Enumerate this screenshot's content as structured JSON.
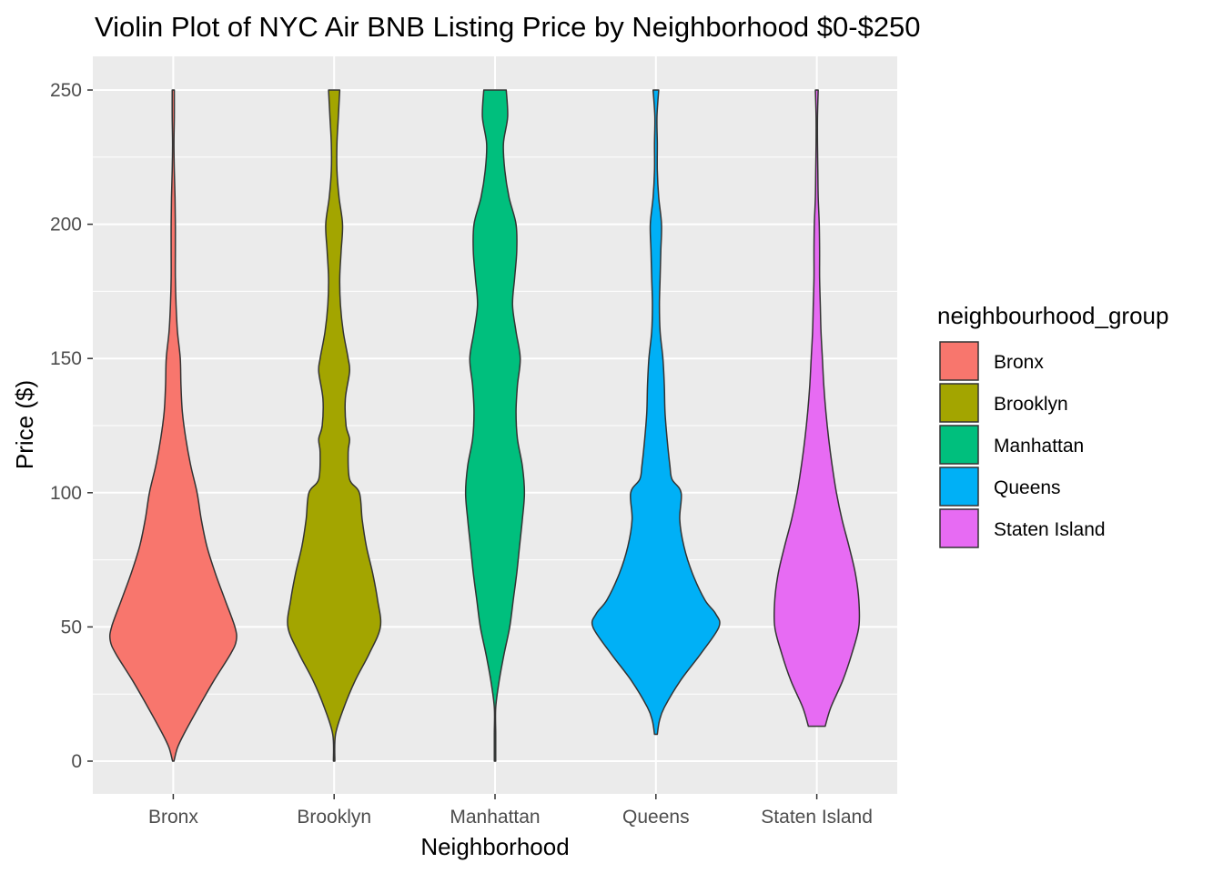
{
  "chart_data": {
    "type": "violin",
    "title": "Violin Plot of NYC Air BNB Listing Price by Neighborhood $0-$250",
    "xlabel": "Neighborhood",
    "ylabel": "Price ($)",
    "ylim": [
      -12,
      262
    ],
    "yticks": [
      0,
      50,
      100,
      150,
      200,
      250
    ],
    "grid": true,
    "legend_position": "right",
    "legend_title": "neighbourhood_group",
    "categories": [
      "Bronx",
      "Brooklyn",
      "Manhattan",
      "Queens",
      "Staten Island"
    ],
    "colors": [
      "#F8766D",
      "#A3A500",
      "#00BF7D",
      "#00B0F6",
      "#E76BF3"
    ],
    "outline_color": "#333333",
    "panel_color": "#EBEBEB",
    "series": [
      {
        "name": "Bronx",
        "min": 0,
        "max": 250,
        "density": [
          [
            0,
            0.01
          ],
          [
            5,
            0.06
          ],
          [
            10,
            0.15
          ],
          [
            20,
            0.36
          ],
          [
            30,
            0.58
          ],
          [
            40,
            0.82
          ],
          [
            45,
            0.9
          ],
          [
            50,
            0.88
          ],
          [
            60,
            0.74
          ],
          [
            70,
            0.6
          ],
          [
            80,
            0.48
          ],
          [
            90,
            0.4
          ],
          [
            100,
            0.34
          ],
          [
            110,
            0.25
          ],
          [
            120,
            0.18
          ],
          [
            130,
            0.13
          ],
          [
            140,
            0.11
          ],
          [
            150,
            0.1
          ],
          [
            160,
            0.06
          ],
          [
            170,
            0.04
          ],
          [
            180,
            0.03
          ],
          [
            190,
            0.03
          ],
          [
            200,
            0.03
          ],
          [
            210,
            0.025
          ],
          [
            220,
            0.015
          ],
          [
            230,
            0.01
          ],
          [
            240,
            0.015
          ],
          [
            250,
            0.015
          ]
        ]
      },
      {
        "name": "Brooklyn",
        "min": 0,
        "max": 250,
        "density": [
          [
            0,
            0.01
          ],
          [
            10,
            0.02
          ],
          [
            20,
            0.14
          ],
          [
            30,
            0.3
          ],
          [
            40,
            0.5
          ],
          [
            50,
            0.66
          ],
          [
            60,
            0.62
          ],
          [
            70,
            0.55
          ],
          [
            80,
            0.46
          ],
          [
            90,
            0.4
          ],
          [
            100,
            0.36
          ],
          [
            105,
            0.22
          ],
          [
            115,
            0.2
          ],
          [
            120,
            0.22
          ],
          [
            125,
            0.17
          ],
          [
            135,
            0.16
          ],
          [
            145,
            0.22
          ],
          [
            150,
            0.2
          ],
          [
            160,
            0.13
          ],
          [
            170,
            0.09
          ],
          [
            180,
            0.08
          ],
          [
            190,
            0.1
          ],
          [
            200,
            0.12
          ],
          [
            210,
            0.07
          ],
          [
            220,
            0.04
          ],
          [
            230,
            0.04
          ],
          [
            240,
            0.06
          ],
          [
            250,
            0.08
          ]
        ]
      },
      {
        "name": "Manhattan",
        "min": 0,
        "max": 250,
        "density": [
          [
            0,
            0.01
          ],
          [
            10,
            0.01
          ],
          [
            20,
            0.01
          ],
          [
            30,
            0.06
          ],
          [
            40,
            0.13
          ],
          [
            50,
            0.21
          ],
          [
            60,
            0.26
          ],
          [
            70,
            0.31
          ],
          [
            80,
            0.35
          ],
          [
            90,
            0.39
          ],
          [
            100,
            0.42
          ],
          [
            110,
            0.39
          ],
          [
            120,
            0.32
          ],
          [
            130,
            0.3
          ],
          [
            140,
            0.32
          ],
          [
            150,
            0.36
          ],
          [
            160,
            0.3
          ],
          [
            170,
            0.25
          ],
          [
            180,
            0.28
          ],
          [
            190,
            0.31
          ],
          [
            200,
            0.3
          ],
          [
            210,
            0.2
          ],
          [
            220,
            0.14
          ],
          [
            230,
            0.12
          ],
          [
            240,
            0.18
          ],
          [
            250,
            0.16
          ]
        ]
      },
      {
        "name": "Queens",
        "min": 10,
        "max": 250,
        "density": [
          [
            10,
            0.02
          ],
          [
            15,
            0.05
          ],
          [
            20,
            0.12
          ],
          [
            30,
            0.35
          ],
          [
            40,
            0.64
          ],
          [
            50,
            0.9
          ],
          [
            55,
            0.85
          ],
          [
            60,
            0.7
          ],
          [
            70,
            0.52
          ],
          [
            80,
            0.4
          ],
          [
            90,
            0.34
          ],
          [
            100,
            0.36
          ],
          [
            105,
            0.23
          ],
          [
            110,
            0.2
          ],
          [
            120,
            0.16
          ],
          [
            130,
            0.13
          ],
          [
            140,
            0.12
          ],
          [
            150,
            0.1
          ],
          [
            160,
            0.06
          ],
          [
            170,
            0.05
          ],
          [
            180,
            0.06
          ],
          [
            190,
            0.07
          ],
          [
            200,
            0.08
          ],
          [
            210,
            0.04
          ],
          [
            220,
            0.02
          ],
          [
            230,
            0.02
          ],
          [
            240,
            0.015
          ],
          [
            250,
            0.04
          ]
        ]
      },
      {
        "name": "Staten Island",
        "min": 13,
        "max": 250,
        "density": [
          [
            13,
            0.12
          ],
          [
            20,
            0.2
          ],
          [
            30,
            0.37
          ],
          [
            40,
            0.5
          ],
          [
            50,
            0.6
          ],
          [
            60,
            0.6
          ],
          [
            70,
            0.55
          ],
          [
            80,
            0.46
          ],
          [
            90,
            0.36
          ],
          [
            100,
            0.28
          ],
          [
            110,
            0.22
          ],
          [
            120,
            0.17
          ],
          [
            130,
            0.13
          ],
          [
            140,
            0.1
          ],
          [
            150,
            0.08
          ],
          [
            160,
            0.06
          ],
          [
            170,
            0.05
          ],
          [
            180,
            0.04
          ],
          [
            190,
            0.04
          ],
          [
            200,
            0.035
          ],
          [
            210,
            0.02
          ],
          [
            220,
            0.015
          ],
          [
            230,
            0.01
          ],
          [
            240,
            0.01
          ],
          [
            250,
            0.02
          ]
        ]
      }
    ]
  }
}
